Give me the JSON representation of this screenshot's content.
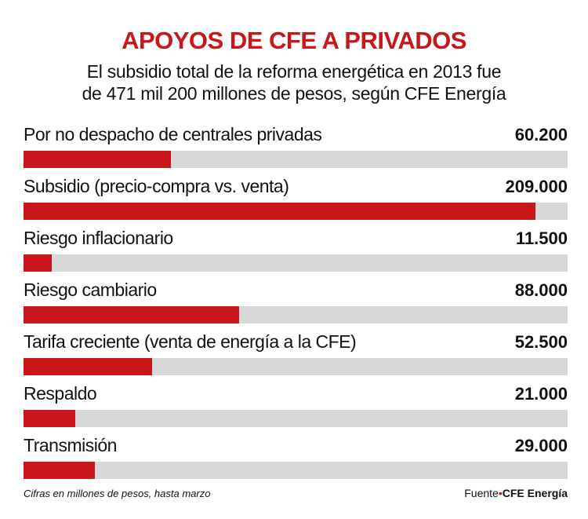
{
  "chart_data": {
    "type": "bar",
    "orientation": "horizontal",
    "title": "APOYOS DE CFE A PRIVADOS",
    "subtitle": [
      "El subsidio total de la reforma energética en 2013 fue",
      "de 471 mil 200 millones de pesos, según CFE Energía"
    ],
    "categories": [
      "Por no despacho de centrales privadas",
      "Subsidio (precio-compra vs. venta)",
      "Riesgo inflacionario",
      "Riesgo cambiario",
      "Tarifa creciente (venta de energía a la CFE)",
      "Respaldo",
      "Transmisión"
    ],
    "values": [
      60200,
      209000,
      11500,
      88000,
      52500,
      21000,
      29000
    ],
    "value_labels": [
      "60.200",
      "209.000",
      "11.500",
      "88.000",
      "52.500",
      "21.000",
      "29.000"
    ],
    "xlim": [
      0,
      222000
    ],
    "note": "Cifras en millones de pesos, hasta marzo",
    "source_prefix": "Fuente",
    "source": "CFE Energía",
    "colors": {
      "bar": "#c8161a",
      "track": "#d7d8d8",
      "title": "#c8161a"
    }
  }
}
